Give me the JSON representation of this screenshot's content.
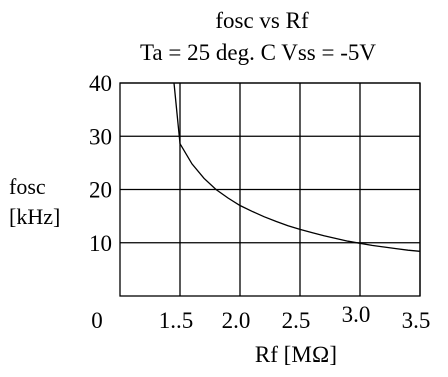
{
  "chart_data": {
    "type": "line",
    "title": "fosc  vs  Rf",
    "subtitle": "Ta = 25 deg. C  Vss = -5V",
    "xlabel": "Rf   [MΩ]",
    "ylabel_line1": "fosc",
    "ylabel_line2": "[kHz]",
    "xlim": [
      1.0,
      3.5
    ],
    "ylim": [
      0,
      40
    ],
    "x_ticks": [
      1.5,
      2.0,
      2.5,
      3.0,
      3.5
    ],
    "x_tick_labels": [
      "1..5",
      "2.0",
      "2.5",
      "3.0",
      "3.5"
    ],
    "x_origin_label": "0",
    "y_ticks": [
      10,
      20,
      30,
      40
    ],
    "y_tick_labels": [
      "10",
      "20",
      "30",
      "40"
    ],
    "grid": true,
    "series": [
      {
        "x": [
          1.45,
          1.5,
          1.6,
          1.7,
          1.8,
          1.9,
          2.0,
          2.1,
          2.2,
          2.3,
          2.4,
          2.5,
          2.6,
          2.7,
          2.8,
          2.9,
          3.0,
          3.1,
          3.2,
          3.3,
          3.4,
          3.5
        ],
        "values": [
          40.0,
          28.6,
          24.8,
          22.1,
          20.0,
          18.4,
          17.0,
          15.9,
          14.9,
          14.0,
          13.2,
          12.5,
          11.9,
          11.3,
          10.8,
          10.3,
          9.9,
          9.5,
          9.2,
          8.9,
          8.6,
          8.4
        ],
        "color": "#000000"
      }
    ]
  }
}
